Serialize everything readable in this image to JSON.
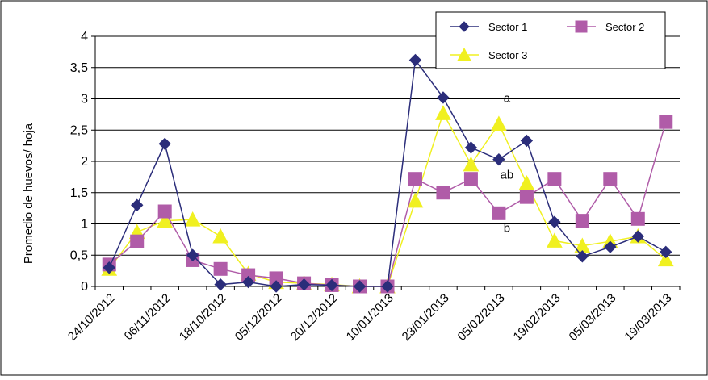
{
  "chart_data": {
    "type": "line",
    "title": "",
    "xlabel": "",
    "ylabel": "Promedio de huevos/ hoja",
    "ylim": [
      0,
      4
    ],
    "yticks": [
      "0",
      "0,5",
      "1",
      "1,5",
      "2",
      "2,5",
      "3",
      "3,5",
      "4"
    ],
    "ytick_values": [
      0,
      0.5,
      1,
      1.5,
      2,
      2.5,
      3,
      3.5,
      4
    ],
    "grid": "horizontal",
    "legend_position": "top-right",
    "x_tick_labels": [
      "24/10/2012",
      "06/11/2012",
      "18/10/2012",
      "05/12/2012",
      "20/12/2012",
      "10/01/2013",
      "23/01/2013",
      "05/02/2013",
      "19/02/2013",
      "05/03/2013",
      "19/03/2013"
    ],
    "x_tick_positions": [
      0,
      2,
      4,
      6,
      8,
      10,
      12,
      14,
      16,
      18,
      20
    ],
    "series": [
      {
        "name": "Sector 1",
        "color": "#2b2d7a",
        "marker": "diamond",
        "values": [
          0.3,
          1.3,
          2.28,
          0.5,
          0.03,
          0.07,
          0.0,
          0.03,
          0.02,
          0.0,
          0.0,
          3.62,
          3.02,
          2.22,
          2.03,
          2.33,
          1.03,
          0.48,
          0.63,
          0.8,
          0.55
        ]
      },
      {
        "name": "Sector 2",
        "color": "#b05ca8",
        "marker": "square",
        "values": [
          0.35,
          0.72,
          1.2,
          0.42,
          0.28,
          0.18,
          0.13,
          0.05,
          0.02,
          0.0,
          0.0,
          1.72,
          1.5,
          1.72,
          1.17,
          1.43,
          1.72,
          1.05,
          1.72,
          1.08,
          2.63
        ]
      },
      {
        "name": "Sector 3",
        "color": "#f0f020",
        "marker": "triangle",
        "values": [
          0.28,
          0.87,
          1.05,
          1.07,
          0.8,
          0.2,
          0.07,
          0.05,
          0.03,
          0.0,
          0.0,
          1.37,
          2.77,
          1.95,
          2.6,
          1.65,
          0.73,
          0.65,
          0.72,
          0.8,
          0.43
        ]
      }
    ],
    "annotations": [
      {
        "text": "a",
        "x": 14,
        "y": 2.95
      },
      {
        "text": "ab",
        "x": 14,
        "y": 1.72
      },
      {
        "text": "b",
        "x": 14,
        "y": 0.87
      }
    ]
  }
}
